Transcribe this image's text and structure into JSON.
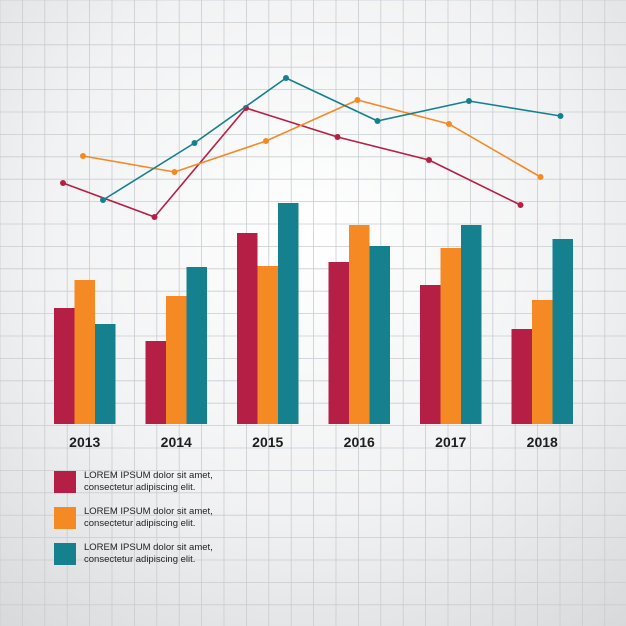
{
  "colors": {
    "red": "#b51f45",
    "orange": "#f58a25",
    "teal": "#15818f",
    "grid": "#c9cdd0"
  },
  "chart_data": [
    {
      "type": "bar",
      "categories": [
        "2013",
        "2014",
        "2015",
        "2016",
        "2017",
        "2018"
      ],
      "series": [
        {
          "color": "#b51f45",
          "values": [
            116,
            83,
            191,
            162,
            139,
            95
          ]
        },
        {
          "color": "#f58a25",
          "values": [
            144,
            128,
            158,
            199,
            176,
            124
          ]
        },
        {
          "color": "#15818f",
          "values": [
            100,
            157,
            221,
            178,
            199,
            185
          ]
        }
      ],
      "ylim": [
        0,
        240
      ],
      "grid": true
    },
    {
      "type": "line",
      "categories": [
        "2013",
        "2014",
        "2015",
        "2016",
        "2017",
        "2018"
      ],
      "series": [
        {
          "color": "#b51f45",
          "values": [
            183,
            217,
            108,
            137,
            160,
            205
          ]
        },
        {
          "color": "#f58a25",
          "values": [
            156,
            172,
            141,
            100,
            124,
            177
          ]
        },
        {
          "color": "#15818f",
          "values": [
            200,
            143,
            78,
            121,
            101,
            116
          ]
        }
      ],
      "grid": true
    }
  ],
  "legend": [
    {
      "color": "#b51f45",
      "line1": "LOREM IPSUM dolor sit amet,",
      "line2": "consectetur adipiscing elit."
    },
    {
      "color": "#f58a25",
      "line1": "LOREM IPSUM dolor sit amet,",
      "line2": "consectetur adipiscing elit."
    },
    {
      "color": "#15818f",
      "line1": "LOREM IPSUM dolor sit amet,",
      "line2": "consectetur adipiscing elit."
    }
  ]
}
